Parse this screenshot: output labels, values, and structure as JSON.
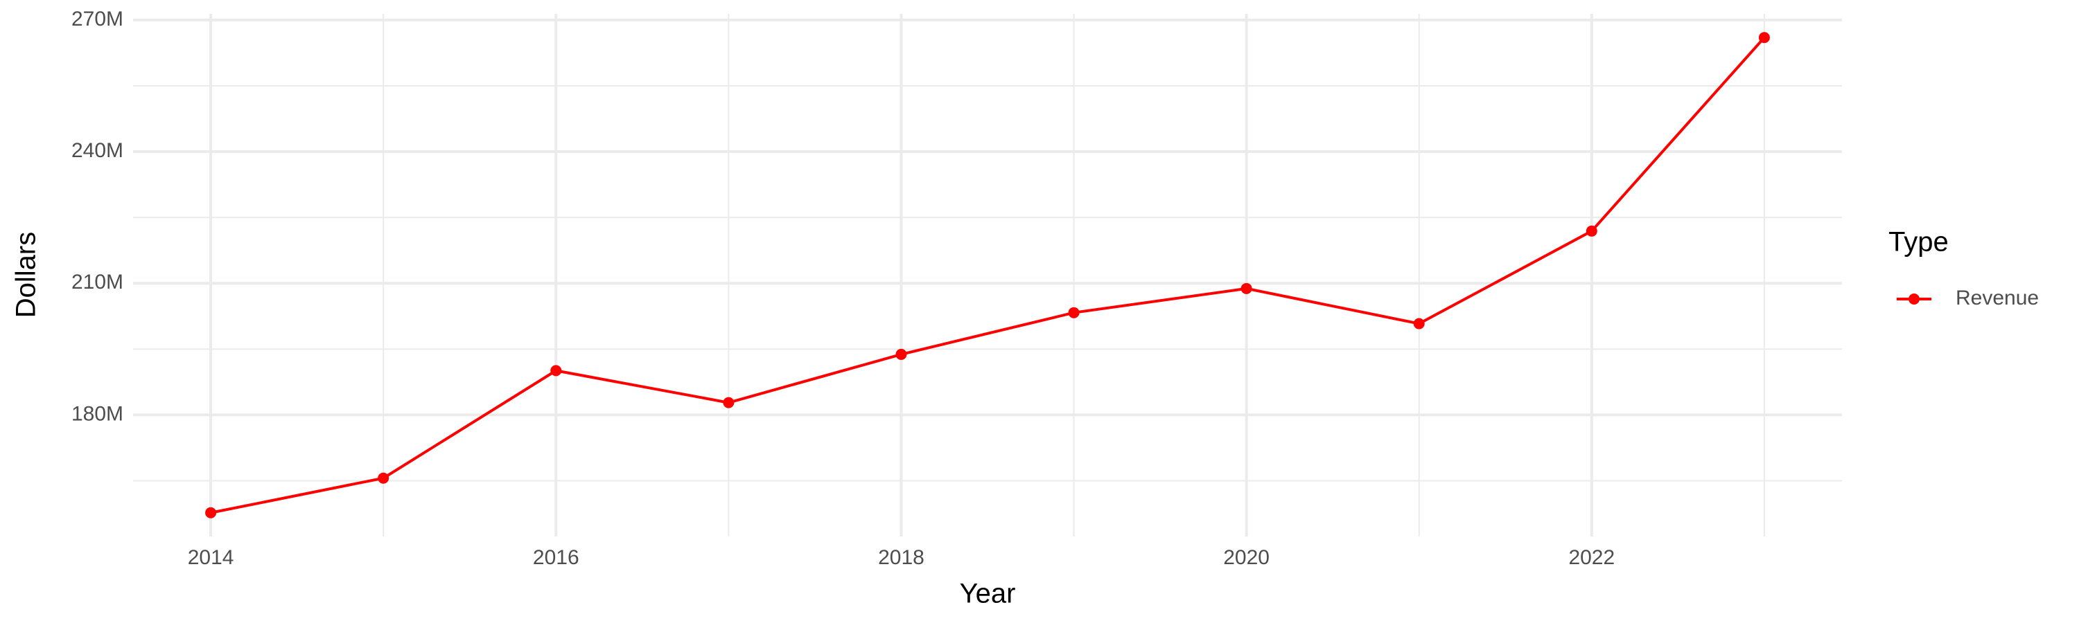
{
  "chart_data": {
    "type": "line",
    "x_label": "Year",
    "y_label": "Dollars",
    "legend_title": "Type",
    "x": [
      2014,
      2015,
      2016,
      2017,
      2018,
      2019,
      2020,
      2021,
      2022,
      2023
    ],
    "series": [
      {
        "name": "Revenue",
        "color": "#ff0000",
        "values": [
          157700000,
          165600000,
          190100000,
          182800000,
          193800000,
          203300000,
          208800000,
          200800000,
          221900000,
          266000000
        ]
      }
    ],
    "xlim": [
      2013.55,
      2023.45
    ],
    "xticks": [
      2014,
      2016,
      2018,
      2020,
      2022
    ],
    "ylim": [
      152300000,
      271400000
    ],
    "yticks": [
      {
        "value": 180000000,
        "label": "180M"
      },
      {
        "value": 210000000,
        "label": "210M"
      },
      {
        "value": 240000000,
        "label": "240M"
      },
      {
        "value": 270000000,
        "label": "270M"
      }
    ],
    "grid": true,
    "legend": "right"
  }
}
